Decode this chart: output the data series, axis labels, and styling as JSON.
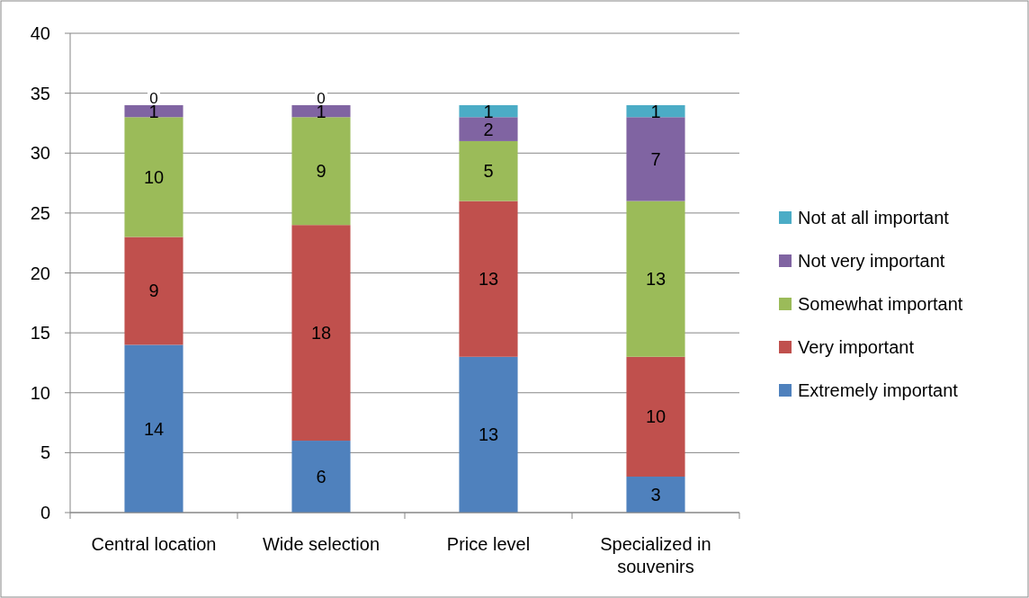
{
  "chart_data": {
    "type": "bar",
    "stacked": true,
    "categories": [
      "Central location",
      "Wide selection",
      "Price level",
      "Specialized in souvenirs"
    ],
    "series": [
      {
        "name": "Extremely important",
        "color": "#4f81bd",
        "values": [
          14,
          6,
          13,
          3
        ]
      },
      {
        "name": "Very important",
        "color": "#c0504d",
        "values": [
          9,
          18,
          13,
          10
        ]
      },
      {
        "name": "Somewhat important",
        "color": "#9bbb59",
        "values": [
          10,
          9,
          5,
          13
        ]
      },
      {
        "name": "Not very important",
        "color": "#8064a2",
        "values": [
          1,
          1,
          2,
          7
        ]
      },
      {
        "name": "Not at all important",
        "color": "#4bacc6",
        "values": [
          0,
          0,
          1,
          1
        ]
      }
    ],
    "ylim": [
      0,
      40
    ],
    "yticks": [
      0,
      5,
      10,
      15,
      20,
      25,
      30,
      35,
      40
    ],
    "grid": "y",
    "legend": "right",
    "data_labels": true
  }
}
